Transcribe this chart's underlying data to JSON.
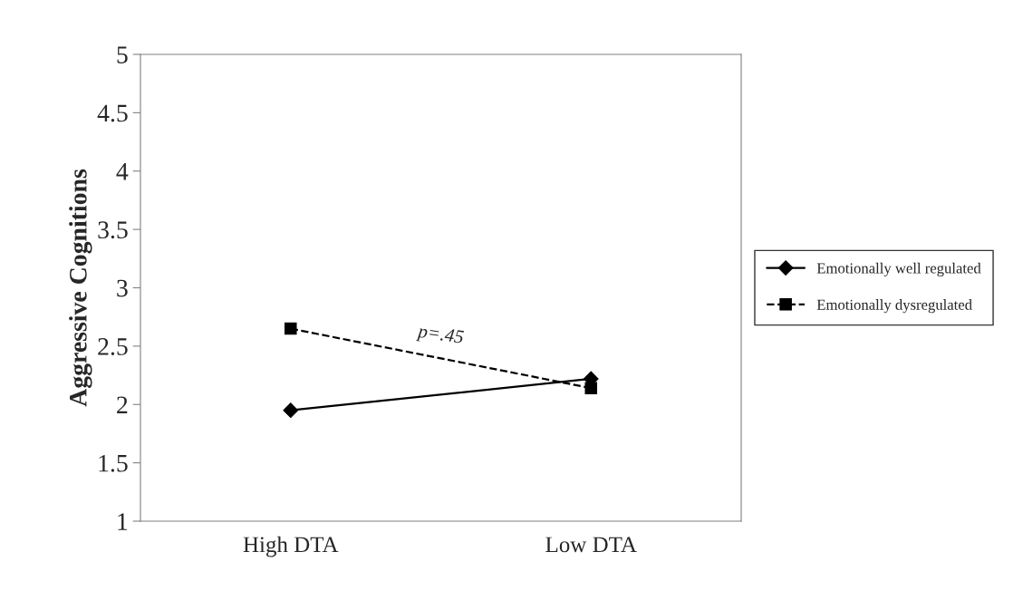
{
  "chart_data": {
    "type": "line",
    "ylabel": "Aggressive Cognitions",
    "categories": [
      "High DTA",
      "Low DTA"
    ],
    "series": [
      {
        "name": "Emotionally well regulated",
        "color": "#000000",
        "values": [
          1.95,
          2.22
        ],
        "marker": "diamond",
        "line_style": "solid"
      },
      {
        "name": "Emotionally dysregulated",
        "color": "#000000",
        "values": [
          2.65,
          2.14
        ],
        "marker": "square",
        "line_style": "dashed"
      }
    ],
    "ylim": [
      1,
      5
    ],
    "yticks": [
      1,
      1.5,
      2,
      2.5,
      3,
      3.5,
      4,
      4.5,
      5
    ],
    "annotations": [
      "p=.45"
    ],
    "grid": false,
    "legend": "right"
  }
}
